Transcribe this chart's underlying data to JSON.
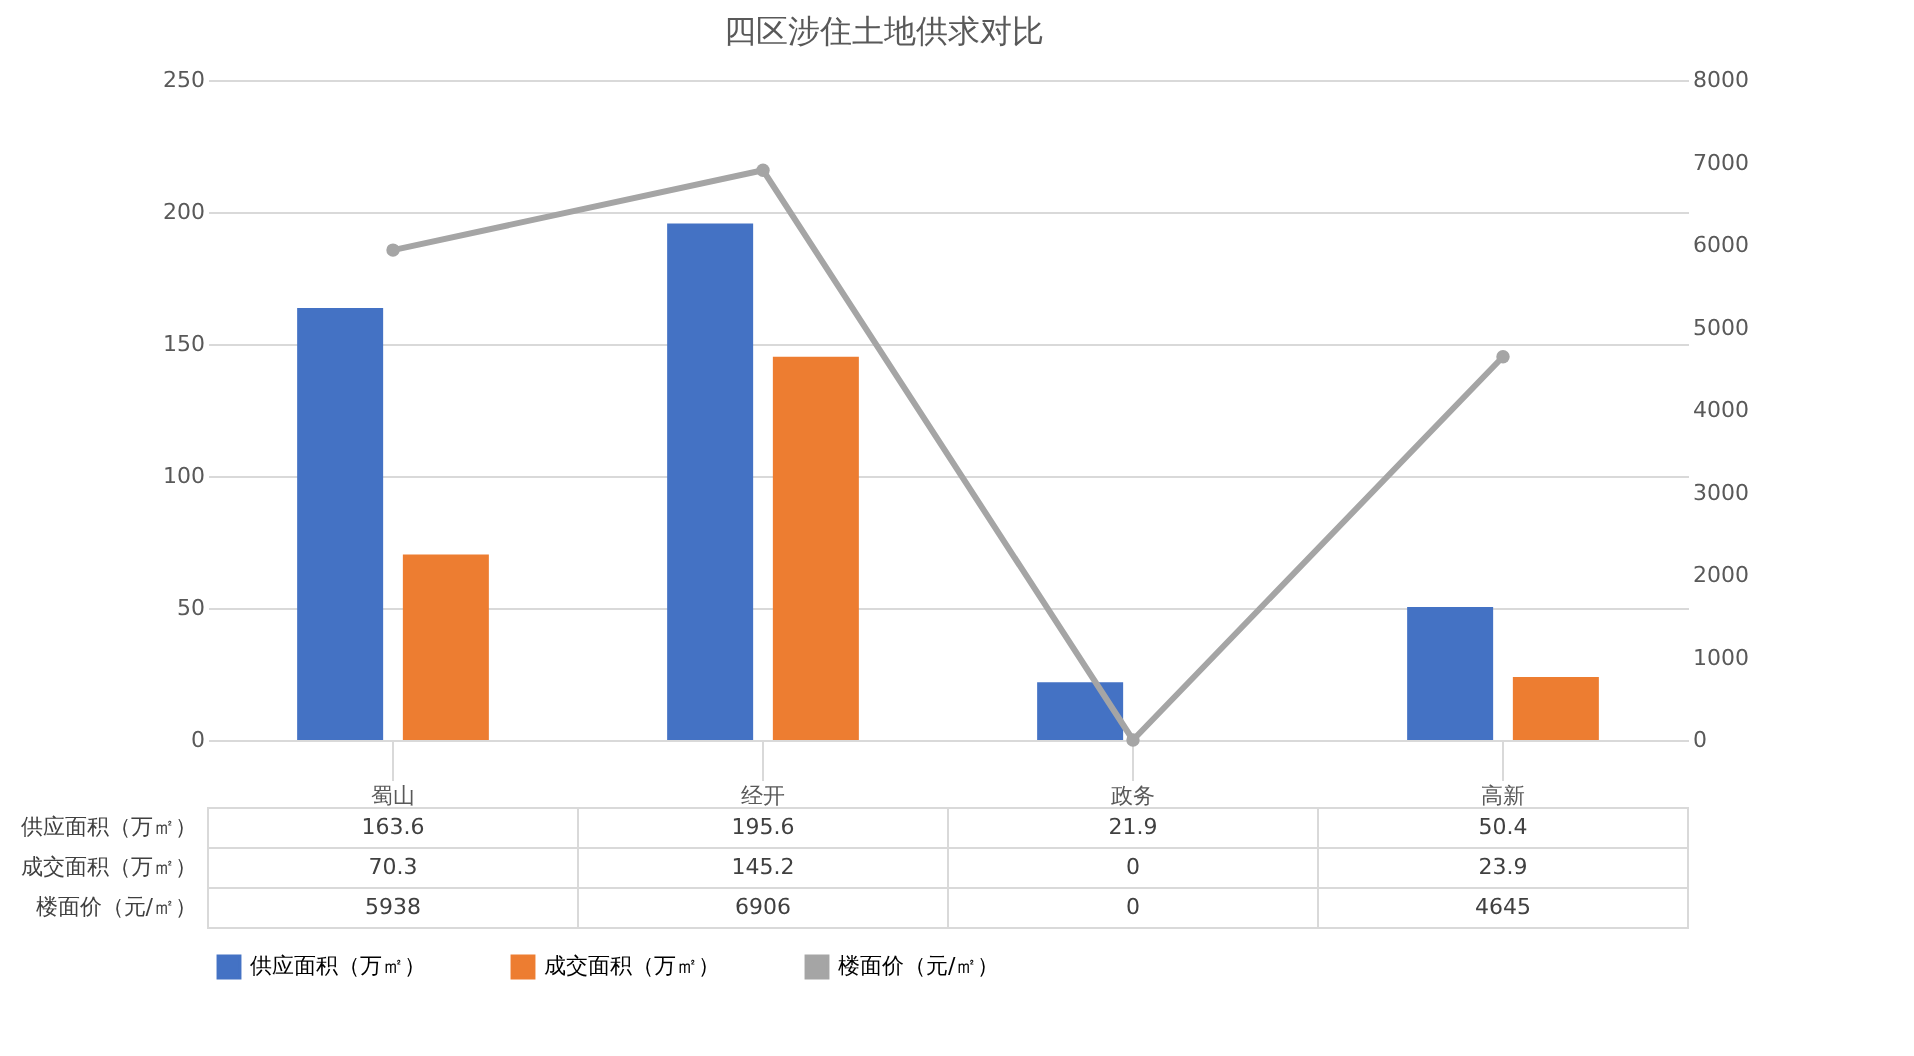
{
  "chart_data": {
    "type": "bar",
    "title": "四区涉住土地供求对比",
    "categories": [
      "蜀山",
      "经开",
      "政务",
      "高新"
    ],
    "series": [
      {
        "name": "供应面积（万㎡）",
        "color": "#4472c4",
        "values": [
          163.6,
          195.6,
          21.9,
          50.4
        ]
      },
      {
        "name": "成交面积（万㎡）",
        "color": "#ed7d31",
        "values": [
          70.3,
          145.2,
          0,
          23.9
        ]
      },
      {
        "name": "楼面价（元/㎡）",
        "color": "#a5a5a5",
        "type": "line",
        "axis": "y2",
        "marker": "circle",
        "values": [
          5938,
          6906,
          0,
          4645
        ]
      }
    ],
    "ylim": [
      0,
      250
    ],
    "yticks": [
      0,
      50,
      100,
      150,
      200,
      250
    ],
    "y2lim": [
      0,
      8000
    ],
    "y2ticks": [
      0,
      1000,
      2000,
      3000,
      4000,
      5000,
      6000,
      7000,
      8000
    ],
    "grid": "y",
    "legend": "bottom",
    "data_labels": true
  }
}
